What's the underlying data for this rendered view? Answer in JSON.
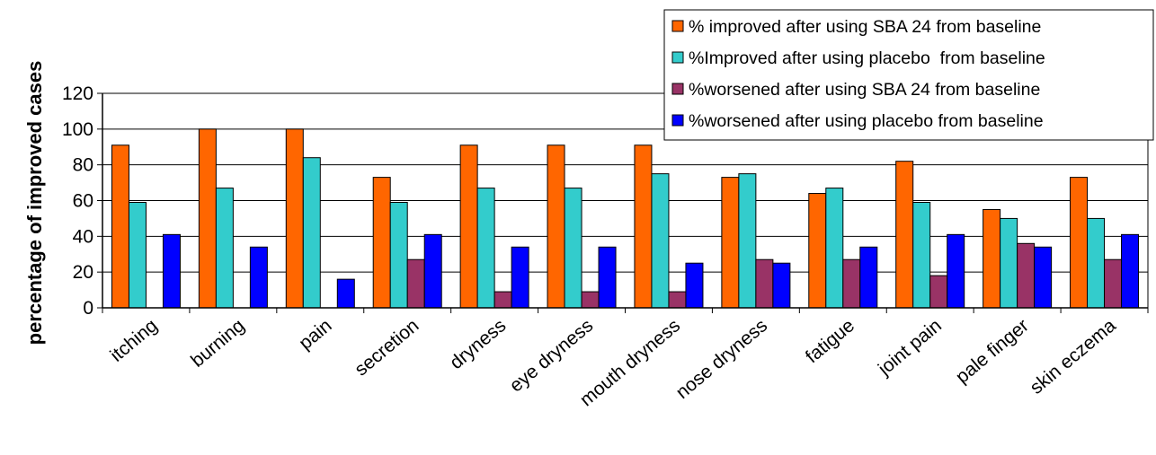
{
  "chart_data": {
    "type": "bar",
    "title": "",
    "xlabel": "",
    "ylabel": "percentage of improved cases",
    "ylim": [
      0,
      120
    ],
    "yticks": [
      0,
      20,
      40,
      60,
      80,
      100,
      120
    ],
    "grid": true,
    "legend_position": "top-right",
    "categories": [
      "itching",
      "burning",
      "pain",
      "secretion",
      "dryness",
      "eye dryness",
      "mouth dryness",
      "nose dryness",
      "fatigue",
      "joint pain",
      "pale finger",
      "skin eczema"
    ],
    "series": [
      {
        "name": "% improved after using SBA 24 from baseline",
        "color": "#FF6600",
        "values": [
          91,
          100,
          100,
          73,
          91,
          91,
          91,
          73,
          64,
          82,
          55,
          73
        ]
      },
      {
        "name": "%Improved after using placebo  from baseline",
        "color": "#33CCCC",
        "values": [
          59,
          67,
          84,
          59,
          67,
          67,
          75,
          75,
          67,
          59,
          50,
          50
        ]
      },
      {
        "name": "%worsened after using SBA 24 from baseline",
        "color": "#993366",
        "values": [
          0,
          0,
          0,
          27,
          9,
          9,
          9,
          27,
          27,
          18,
          36,
          27
        ]
      },
      {
        "name": "%worsened after using placebo from baseline",
        "color": "#0000FF",
        "values": [
          41,
          34,
          16,
          41,
          34,
          34,
          25,
          25,
          34,
          41,
          34,
          41
        ]
      }
    ]
  }
}
